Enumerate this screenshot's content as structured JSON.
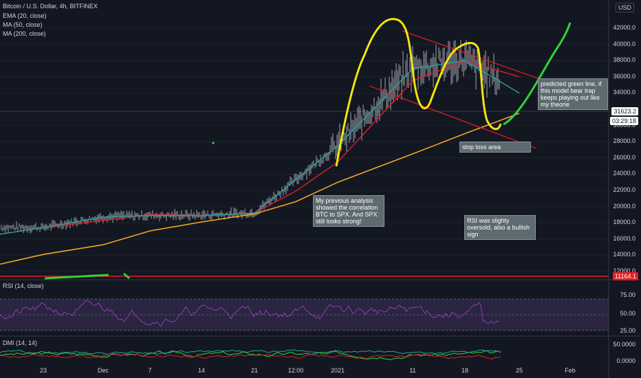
{
  "header": {
    "symbol": "Bitcoin / U.S. Dollar, 4h, BITFINEX",
    "ind1": "EMA (20, close)",
    "ind2": "MA (50, close)",
    "ind3": "MA (200, close)",
    "currency": "USD"
  },
  "price_axis": [
    "42000.0",
    "40000.0",
    "38000.0",
    "36000.0",
    "34000.0",
    "30000.0",
    "28000.0",
    "26000.0",
    "24000.0",
    "22000.0",
    "20000.0",
    "18000.0",
    "16000.0",
    "14000.0",
    "12000.0"
  ],
  "price_tags": {
    "last": "31623.2",
    "countdown": "03:29:18",
    "low": "11164.1"
  },
  "time_axis": [
    "23",
    "Dec",
    "7",
    "14",
    "21",
    "12:00",
    "2021",
    "11",
    "18",
    "25",
    "Feb"
  ],
  "rsi": {
    "title": "RSI (14, close)",
    "ticks": [
      "75.00",
      "50.00",
      "25.00"
    ]
  },
  "dmi": {
    "title": "DMI (14, 14)",
    "ticks": [
      "50.0000",
      "0.0000"
    ]
  },
  "annotations": {
    "green_line": "predicted green line, if this model bear trap keeps playing out like my theorie",
    "stop_loss": "stop loss area",
    "previous": "My previous analysis showed the correlation BTC to SPX. And SPX still looks strong!",
    "rsi_note": "RSI was slighty oversold, also a bullish sign"
  },
  "colors": {
    "bg": "#131722",
    "ema": "#26a69a",
    "ma50": "#e31e24",
    "ma200": "#f5a623",
    "prediction": "#2ed438",
    "pattern": "#f5e50a",
    "candles": "#c8cbd2",
    "rsi": "#8e3fb0",
    "rsi_band": "#2a2540",
    "dmi_plus": "#2ed438",
    "dmi_minus": "#e31e24",
    "adx": "#26a69a"
  },
  "chart_data": {
    "type": "line",
    "title": "Bitcoin / U.S. Dollar, 4h, BITFINEX",
    "x": [
      "23",
      "Dec",
      "7",
      "14",
      "21",
      "12:00",
      "2021",
      "11",
      "18",
      "25",
      "Feb"
    ],
    "ylim": [
      11000,
      44000
    ],
    "series": [
      {
        "name": "EMA (20, close)",
        "values": [
          17400,
          18700,
          18900,
          18900,
          19200,
          23300,
          27500,
          37000,
          38000,
          34000,
          null
        ]
      },
      {
        "name": "MA (50, close)",
        "values": [
          17400,
          18300,
          19000,
          18900,
          19200,
          21900,
          25500,
          35500,
          38000,
          36000,
          null
        ]
      },
      {
        "name": "MA (200, close)",
        "values": [
          14100,
          15300,
          17000,
          18100,
          19100,
          20600,
          23000,
          26500,
          29000,
          31500,
          null
        ]
      }
    ],
    "close_price": 31623.2,
    "rsi_levels": [
      75,
      50,
      25
    ]
  }
}
